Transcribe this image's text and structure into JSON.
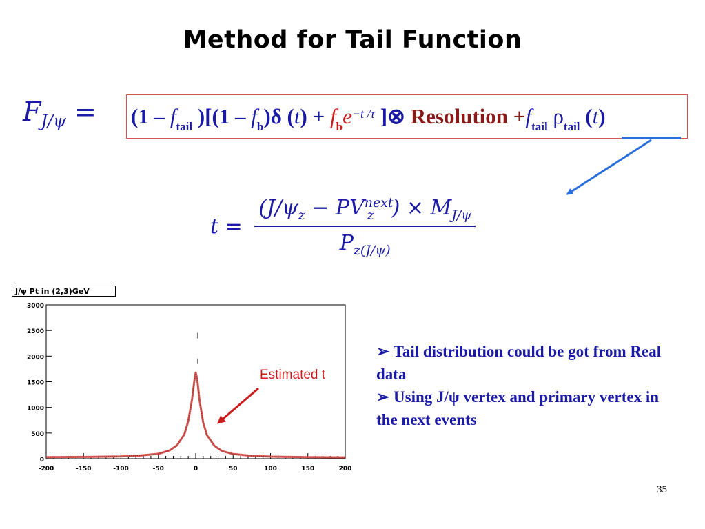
{
  "slide": {
    "title": "Method for Tail Function",
    "page_number": "35"
  },
  "formula_main": {
    "lhs_F": "F",
    "lhs_sub": "J/ψ",
    "lhs_eq": "=",
    "p1": "(1 –",
    "f": "f",
    "tail": "tail",
    "p2": ")[(1 –",
    "b": "b",
    "p3": ")δ (",
    "t": "t",
    "p4": ") +",
    "e": "e",
    "exp": "−t /τ",
    "p5": "]⊗",
    "resolution": "Resolution",
    "plus": "+",
    "rho": "ρ",
    "p6": "(",
    "p7": ")"
  },
  "formula_t": {
    "lhs": "t =",
    "num_a": "(J/ψ",
    "num_a_sub": "z",
    "num_b": " − PV",
    "num_b_sup": "next",
    "num_b_sub": "z",
    "num_c": ") × M",
    "num_c_sub": "J/ψ",
    "den": "P",
    "den_sub": "z(J/ψ)"
  },
  "annotation": {
    "estimated": "Estimated t"
  },
  "bullets": [
    "➢ Tail distribution could be got from Real data",
    "➢ Using J/ψ vertex and primary vertex in the next events"
  ],
  "colors": {
    "formula_blue": "#1a1aa6",
    "formula_red": "#cc1a1a",
    "arrow_blue": "#2a6fdb",
    "arrow_red": "#cc1a1a",
    "curve": "#d9534f"
  },
  "chart_data": {
    "type": "line",
    "title": "J/ψ Pt in (2,3)GeV",
    "xlabel": "",
    "ylabel": "",
    "xlim": [
      -200,
      200
    ],
    "ylim": [
      0,
      3000
    ],
    "xticks": [
      -200,
      -150,
      -100,
      -50,
      0,
      50,
      100,
      150,
      200
    ],
    "yticks": [
      0,
      500,
      1000,
      1500,
      2000,
      2500,
      3000
    ],
    "grid": false,
    "series": [
      {
        "x": [
          -200,
          -150,
          -100,
          -75,
          -50,
          -35,
          -25,
          -15,
          -10,
          -5,
          -2,
          0,
          2,
          5,
          10,
          15,
          25,
          35,
          50,
          75,
          100,
          150,
          200
        ],
        "values": [
          30,
          35,
          45,
          60,
          95,
          160,
          260,
          480,
          730,
          1150,
          1500,
          1680,
          1550,
          1150,
          700,
          460,
          250,
          150,
          90,
          55,
          40,
          30,
          25
        ]
      }
    ],
    "outliers": [
      {
        "x": 3,
        "y": 2400
      },
      {
        "x": 3,
        "y": 1900
      }
    ]
  }
}
